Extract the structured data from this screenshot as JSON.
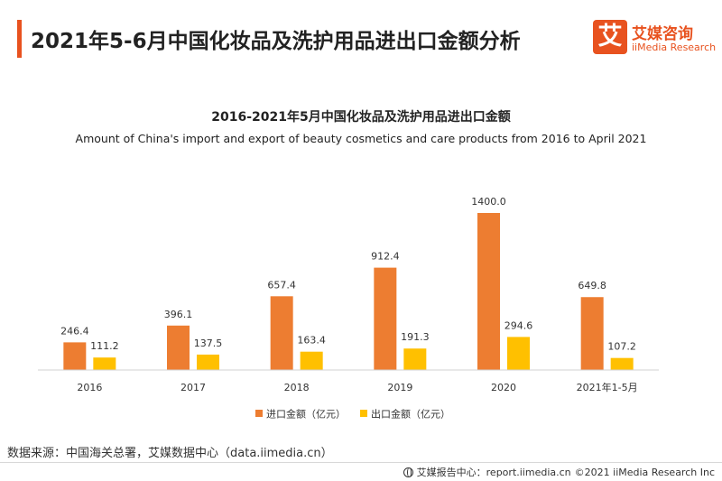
{
  "header": {
    "title": "2021年5-6月中国化妆品及洗护用品进出口金额分析"
  },
  "logo": {
    "mark": "艾",
    "name_cn": "艾媒咨询",
    "name_en": "iiMedia Research"
  },
  "chart_data": {
    "type": "bar",
    "title": "2016-2021年5月中国化妆品及洗护用品进出口金额",
    "subtitle": "Amount of China's import and export of beauty cosmetics and care products from 2016 to April 2021",
    "categories": [
      "2016",
      "2017",
      "2018",
      "2019",
      "2020",
      "2021年1-5月"
    ],
    "series": [
      {
        "name": "进口金额（亿元）",
        "color": "#ed7d31",
        "values": [
          246.4,
          396.1,
          657.4,
          912.4,
          1400.0,
          649.8
        ]
      },
      {
        "name": "出口金额（亿元）",
        "color": "#ffc000",
        "values": [
          111.2,
          137.5,
          163.4,
          191.3,
          294.6,
          107.2
        ]
      }
    ],
    "ylim": [
      0,
      1400
    ],
    "grid": false,
    "legend_position": "bottom",
    "y_axis_visible": false
  },
  "source": "数据来源：中国海关总署，艾媒数据中心（data.iimedia.cn）",
  "footer": {
    "report_center": "艾媒报告中心：report.iimedia.cn",
    "copyright": "©2021  iiMedia Research  Inc"
  }
}
